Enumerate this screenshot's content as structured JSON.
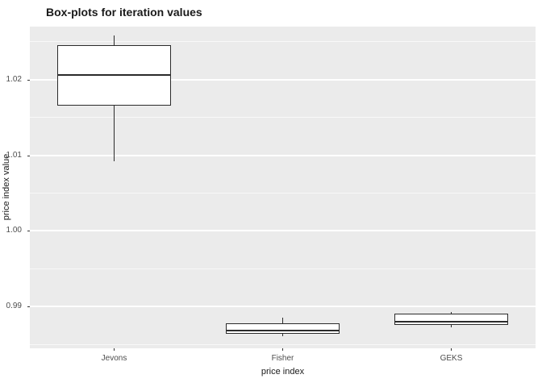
{
  "title": "Box-plots for iteration values",
  "chart_data": {
    "type": "boxplot",
    "title": "Box-plots for iteration values",
    "xlabel": "price index",
    "ylabel": "price index value",
    "categories": [
      "Jevons",
      "Fisher",
      "GEKS"
    ],
    "ylim": [
      0.9845,
      1.027
    ],
    "yticks": [
      0.99,
      1.0,
      1.01,
      1.02
    ],
    "ytick_labels": [
      "0.99",
      "1.00",
      "1.01",
      "1.02"
    ],
    "yticks_minor": [
      0.985,
      0.995,
      1.005,
      1.015,
      1.025
    ],
    "grid": true,
    "legend": "none",
    "panel_bg": "#EBEBEB",
    "grid_color": "#FFFFFF",
    "box_color": "#2b2b2b",
    "box_fill": "#ffffff",
    "boxes": [
      {
        "category": "Jevons",
        "min": 1.0092,
        "q1": 1.0166,
        "median": 1.0206,
        "q3": 1.0245,
        "max": 1.0258
      },
      {
        "category": "Fisher",
        "min": 0.9861,
        "q1": 0.9864,
        "median": 0.9868,
        "q3": 0.9878,
        "max": 0.9886
      },
      {
        "category": "GEKS",
        "min": 0.9873,
        "q1": 0.9876,
        "median": 0.988,
        "q3": 0.9891,
        "max": 0.9893
      }
    ]
  }
}
